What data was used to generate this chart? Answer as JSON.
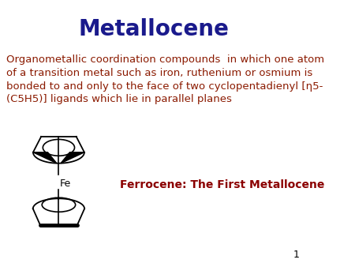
{
  "title": "Metallocene",
  "title_color": "#1a1a8c",
  "title_fontsize": 20,
  "title_fontweight": "bold",
  "body_lines": [
    "Organometallic coordination compounds  in which one atom",
    "of a transition metal such as iron, ruthenium or osmium is",
    "bonded to and only to the face of two cyclopentadienyl [η5-",
    "(C5H5)] ligands which lie in parallel planes"
  ],
  "body_color": "#8b1a00",
  "body_fontsize": 9.5,
  "label_text": "Ferrocene: The First Metallocene",
  "label_color": "#8b0000",
  "label_fontsize": 10,
  "label_fontweight": "bold",
  "background_color": "#ffffff",
  "page_number": "1"
}
